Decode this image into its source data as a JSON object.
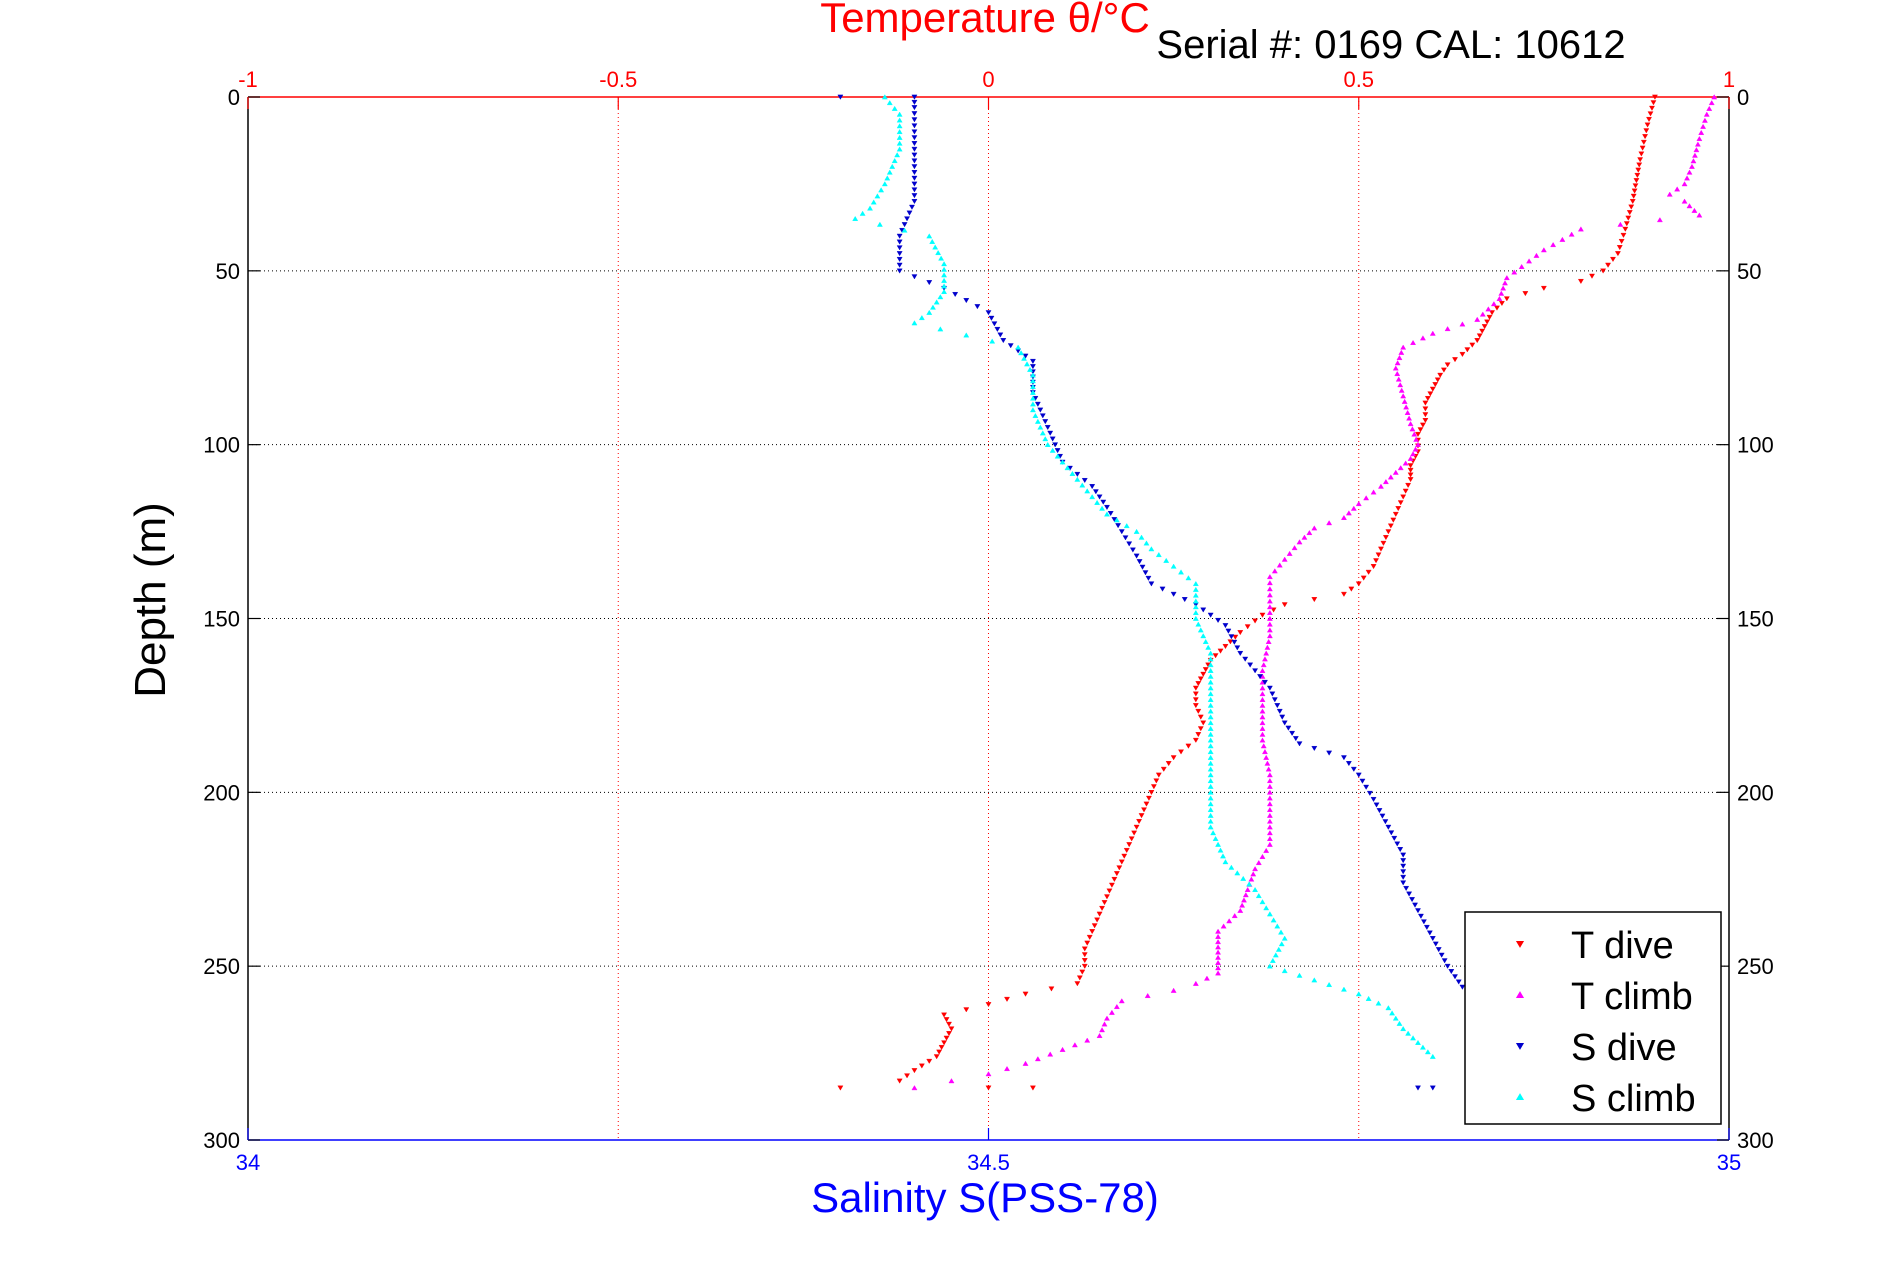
{
  "colors": {
    "t_axis": "#ff0000",
    "s_axis": "#0000ff",
    "frame": "#000000",
    "grid": "#000000",
    "t_dive": "#ff0000",
    "t_climb": "#ff00ff",
    "s_dive": "#0000cc",
    "s_climb": "#00ffff"
  },
  "chart_data": {
    "type": "scatter",
    "title": "Temperature θ/°C",
    "serial_label": "Serial #: 0169 CAL: 10612",
    "ylabel": "Depth (m)",
    "xlabel_bottom": "Salinity S(PSS-78)",
    "ylim": [
      0,
      300
    ],
    "y_reversed": true,
    "y_ticks": [
      0,
      50,
      100,
      150,
      200,
      250,
      300
    ],
    "x_top": {
      "label": "Temperature θ/°C",
      "lim": [
        -1,
        1
      ],
      "ticks": [
        -1,
        -0.5,
        0,
        0.5,
        1
      ],
      "tick_labels": [
        "-1",
        "-0.5",
        "0",
        "0.5",
        "1"
      ]
    },
    "x_bottom": {
      "label": "Salinity S(PSS-78)",
      "lim": [
        34,
        35
      ],
      "ticks": [
        34,
        34.5,
        35
      ],
      "tick_labels": [
        "34",
        "34.5",
        "35"
      ]
    },
    "grid": true,
    "legend_position": "bottom-right",
    "legend": [
      "T dive",
      "T climb",
      "S dive",
      "S climb"
    ],
    "series": [
      {
        "name": "T dive",
        "axis": "temperature",
        "marker": "triangle-down",
        "color": "t_dive",
        "points": [
          [
            0.9,
            0
          ],
          [
            0.89,
            8
          ],
          [
            0.88,
            18
          ],
          [
            0.87,
            30
          ],
          [
            0.86,
            38
          ],
          [
            0.85,
            45
          ],
          [
            0.83,
            50
          ],
          [
            0.8,
            53
          ],
          [
            0.75,
            55
          ],
          [
            0.7,
            58
          ],
          [
            0.68,
            62
          ],
          [
            0.67,
            66
          ],
          [
            0.66,
            70
          ],
          [
            0.64,
            74
          ],
          [
            0.62,
            77
          ],
          [
            0.61,
            80
          ],
          [
            0.6,
            84
          ],
          [
            0.59,
            88
          ],
          [
            0.59,
            93
          ],
          [
            0.58,
            97
          ],
          [
            0.58,
            102
          ],
          [
            0.57,
            106
          ],
          [
            0.57,
            110
          ],
          [
            0.56,
            115
          ],
          [
            0.55,
            120
          ],
          [
            0.54,
            125
          ],
          [
            0.53,
            130
          ],
          [
            0.52,
            135
          ],
          [
            0.5,
            140
          ],
          [
            0.48,
            143
          ],
          [
            0.4,
            146
          ],
          [
            0.37,
            149
          ],
          [
            0.34,
            154
          ],
          [
            0.32,
            158
          ],
          [
            0.3,
            162
          ],
          [
            0.29,
            166
          ],
          [
            0.28,
            170
          ],
          [
            0.28,
            175
          ],
          [
            0.29,
            180
          ],
          [
            0.28,
            185
          ],
          [
            0.25,
            190
          ],
          [
            0.23,
            195
          ],
          [
            0.22,
            200
          ],
          [
            0.21,
            205
          ],
          [
            0.2,
            210
          ],
          [
            0.19,
            215
          ],
          [
            0.18,
            220
          ],
          [
            0.17,
            225
          ],
          [
            0.16,
            230
          ],
          [
            0.15,
            235
          ],
          [
            0.14,
            240
          ],
          [
            0.13,
            245
          ],
          [
            0.13,
            250
          ],
          [
            0.12,
            255
          ],
          [
            0.05,
            258
          ],
          [
            0.0,
            261
          ],
          [
            -0.06,
            264
          ],
          [
            -0.05,
            268
          ],
          [
            -0.06,
            272
          ],
          [
            -0.07,
            276
          ],
          [
            -0.1,
            280
          ],
          [
            -0.12,
            283
          ],
          [
            -0.2,
            285
          ],
          [
            0.0,
            285
          ],
          [
            0.06,
            285
          ]
        ]
      },
      {
        "name": "T climb",
        "axis": "temperature",
        "marker": "triangle-up",
        "color": "t_climb",
        "points": [
          [
            0.98,
            0
          ],
          [
            0.97,
            5
          ],
          [
            0.96,
            12
          ],
          [
            0.95,
            20
          ],
          [
            0.94,
            25
          ],
          [
            0.92,
            28
          ],
          [
            0.94,
            30
          ],
          [
            0.96,
            34
          ],
          [
            0.8,
            38
          ],
          [
            0.75,
            44
          ],
          [
            0.7,
            52
          ],
          [
            0.69,
            58
          ],
          [
            0.66,
            64
          ],
          [
            0.6,
            68
          ],
          [
            0.56,
            72
          ],
          [
            0.55,
            78
          ],
          [
            0.56,
            86
          ],
          [
            0.57,
            94
          ],
          [
            0.58,
            100
          ],
          [
            0.57,
            104
          ],
          [
            0.55,
            108
          ],
          [
            0.53,
            112
          ],
          [
            0.5,
            117
          ],
          [
            0.48,
            121
          ],
          [
            0.44,
            124
          ],
          [
            0.42,
            128
          ],
          [
            0.4,
            133
          ],
          [
            0.38,
            138
          ],
          [
            0.38,
            145
          ],
          [
            0.38,
            155
          ],
          [
            0.37,
            165
          ],
          [
            0.37,
            175
          ],
          [
            0.37,
            185
          ],
          [
            0.38,
            195
          ],
          [
            0.38,
            205
          ],
          [
            0.38,
            215
          ],
          [
            0.36,
            222
          ],
          [
            0.35,
            228
          ],
          [
            0.34,
            234
          ],
          [
            0.31,
            240
          ],
          [
            0.31,
            246
          ],
          [
            0.31,
            252
          ],
          [
            0.28,
            255
          ],
          [
            0.25,
            257
          ],
          [
            0.18,
            260
          ],
          [
            0.16,
            265
          ],
          [
            0.15,
            270
          ],
          [
            0.1,
            274
          ],
          [
            0.05,
            278
          ],
          [
            0.0,
            281
          ],
          [
            -0.05,
            283
          ],
          [
            -0.1,
            285
          ]
        ]
      },
      {
        "name": "S dive",
        "axis": "salinity",
        "marker": "triangle-down",
        "color": "s_dive",
        "points": [
          [
            34.4,
            0
          ],
          [
            34.45,
            0
          ],
          [
            34.45,
            3
          ],
          [
            34.45,
            10
          ],
          [
            34.45,
            20
          ],
          [
            34.45,
            30
          ],
          [
            34.44,
            40
          ],
          [
            34.44,
            50
          ],
          [
            34.47,
            55
          ],
          [
            34.5,
            62
          ],
          [
            34.51,
            70
          ],
          [
            34.53,
            76
          ],
          [
            34.53,
            85
          ],
          [
            34.54,
            95
          ],
          [
            34.55,
            105
          ],
          [
            34.57,
            112
          ],
          [
            34.58,
            118
          ],
          [
            34.59,
            125
          ],
          [
            34.6,
            132
          ],
          [
            34.61,
            140
          ],
          [
            34.64,
            146
          ],
          [
            34.66,
            152
          ],
          [
            34.67,
            160
          ],
          [
            34.69,
            170
          ],
          [
            34.7,
            180
          ],
          [
            34.71,
            186
          ],
          [
            34.74,
            190
          ],
          [
            34.75,
            195
          ],
          [
            34.76,
            202
          ],
          [
            34.77,
            210
          ],
          [
            34.78,
            218
          ],
          [
            34.78,
            226
          ],
          [
            34.79,
            234
          ],
          [
            34.8,
            242
          ],
          [
            34.81,
            250
          ],
          [
            34.82,
            256
          ],
          [
            34.89,
            260
          ],
          [
            34.91,
            262
          ],
          [
            34.92,
            268
          ],
          [
            34.91,
            274
          ],
          [
            34.9,
            280
          ],
          [
            34.86,
            283
          ],
          [
            34.79,
            285
          ],
          [
            34.8,
            285
          ],
          [
            34.9,
            285
          ],
          [
            34.93,
            285
          ],
          [
            34.96,
            285
          ]
        ]
      },
      {
        "name": "S climb",
        "axis": "salinity",
        "marker": "triangle-up",
        "color": "s_climb",
        "points": [
          [
            34.43,
            0
          ],
          [
            34.44,
            5
          ],
          [
            34.44,
            15
          ],
          [
            34.43,
            25
          ],
          [
            34.42,
            32
          ],
          [
            34.41,
            35
          ],
          [
            34.46,
            40
          ],
          [
            34.47,
            48
          ],
          [
            34.47,
            56
          ],
          [
            34.46,
            62
          ],
          [
            34.45,
            65
          ],
          [
            34.52,
            72
          ],
          [
            34.53,
            80
          ],
          [
            34.53,
            90
          ],
          [
            34.54,
            100
          ],
          [
            34.56,
            110
          ],
          [
            34.58,
            120
          ],
          [
            34.6,
            125
          ],
          [
            34.61,
            130
          ],
          [
            34.64,
            140
          ],
          [
            34.64,
            150
          ],
          [
            34.65,
            160
          ],
          [
            34.65,
            170
          ],
          [
            34.65,
            180
          ],
          [
            34.65,
            190
          ],
          [
            34.65,
            200
          ],
          [
            34.65,
            210
          ],
          [
            34.66,
            220
          ],
          [
            34.68,
            228
          ],
          [
            34.69,
            235
          ],
          [
            34.7,
            242
          ],
          [
            34.69,
            250
          ],
          [
            34.72,
            254
          ],
          [
            34.75,
            258
          ],
          [
            34.77,
            262
          ],
          [
            34.78,
            268
          ],
          [
            34.79,
            272
          ],
          [
            34.8,
            276
          ],
          [
            34.85,
            279
          ],
          [
            34.88,
            282
          ],
          [
            34.85,
            284
          ],
          [
            34.9,
            284
          ],
          [
            34.93,
            285
          ],
          [
            34.95,
            285
          ]
        ]
      }
    ]
  }
}
